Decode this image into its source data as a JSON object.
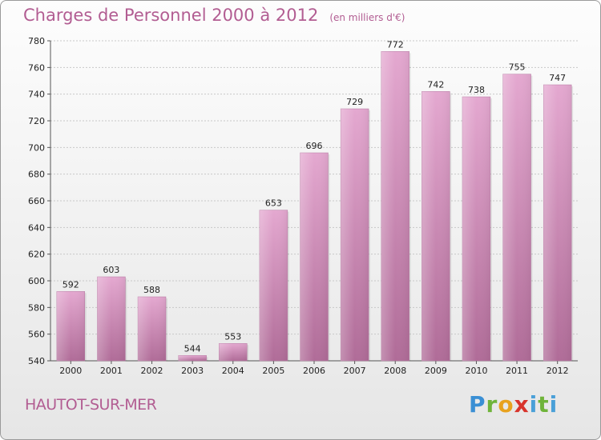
{
  "title": "Charges de Personnel 2000 à 2012",
  "subtitle": "(en milliers d'€)",
  "commune": "HAUTOT-SUR-MER",
  "logo": {
    "p1": "P",
    "p2": "r",
    "p3": "o",
    "p4": "x",
    "p5": "i",
    "p6": "t",
    "p7": "i"
  },
  "chart_data": {
    "type": "bar",
    "categories": [
      "2000",
      "2001",
      "2002",
      "2003",
      "2004",
      "2005",
      "2006",
      "2007",
      "2008",
      "2009",
      "2010",
      "2011",
      "2012"
    ],
    "values": [
      592,
      603,
      588,
      544,
      553,
      653,
      696,
      729,
      772,
      742,
      738,
      755,
      747
    ],
    "title": "Charges de Personnel 2000 à 2012",
    "ylim": [
      540,
      780
    ],
    "yticks": [
      540,
      560,
      580,
      600,
      620,
      640,
      660,
      680,
      700,
      720,
      740,
      760,
      780
    ],
    "grid": true,
    "bar_color": "#cc88b4"
  }
}
